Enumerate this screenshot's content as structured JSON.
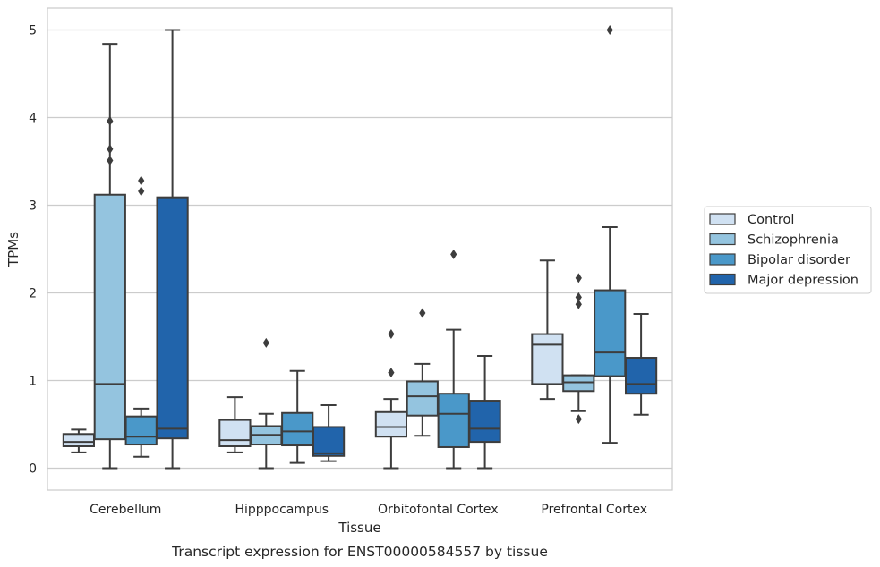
{
  "chart_data": {
    "type": "box",
    "title": "",
    "caption": "Transcript expression for ENST00000584557 by tissue",
    "xlabel": "Tissue",
    "ylabel": "TPMs",
    "ylim": [
      -0.25,
      5.25
    ],
    "yticks": [
      0,
      1,
      2,
      3,
      4,
      5
    ],
    "grid": "horizontal",
    "legend_position": "right",
    "categories": [
      "Cerebellum",
      "Hipppocampus",
      "Orbitofontal Cortex",
      "Prefrontal Cortex"
    ],
    "series": [
      {
        "name": "Control",
        "color": "#d0e1f2",
        "boxes": [
          {
            "whislo": 0.18,
            "q1": 0.25,
            "med": 0.3,
            "q3": 0.39,
            "whishi": 0.44,
            "fliers": []
          },
          {
            "whislo": 0.18,
            "q1": 0.25,
            "med": 0.32,
            "q3": 0.55,
            "whishi": 0.81,
            "fliers": []
          },
          {
            "whislo": 0.0,
            "q1": 0.36,
            "med": 0.47,
            "q3": 0.64,
            "whishi": 0.79,
            "fliers": [
              1.09,
              1.53
            ]
          },
          {
            "whislo": 0.79,
            "q1": 0.96,
            "med": 1.41,
            "q3": 1.53,
            "whishi": 2.37,
            "fliers": []
          }
        ]
      },
      {
        "name": "Schizophrenia",
        "color": "#94c4df",
        "boxes": [
          {
            "whislo": 0.0,
            "q1": 0.33,
            "med": 0.96,
            "q3": 3.12,
            "whishi": 4.84,
            "fliers": [
              3.51,
              3.64,
              3.96
            ]
          },
          {
            "whislo": 0.0,
            "q1": 0.27,
            "med": 0.38,
            "q3": 0.48,
            "whishi": 0.62,
            "fliers": [
              1.43
            ]
          },
          {
            "whislo": 0.37,
            "q1": 0.6,
            "med": 0.82,
            "q3": 0.99,
            "whishi": 1.19,
            "fliers": [
              1.77
            ]
          },
          {
            "whislo": 0.65,
            "q1": 0.88,
            "med": 0.98,
            "q3": 1.06,
            "whishi": 1.06,
            "fliers": [
              0.56,
              1.87,
              1.95,
              2.17
            ]
          }
        ]
      },
      {
        "name": "Bipolar disorder",
        "color": "#4a98c9",
        "boxes": [
          {
            "whislo": 0.13,
            "q1": 0.27,
            "med": 0.36,
            "q3": 0.59,
            "whishi": 0.68,
            "fliers": [
              3.16,
              3.28
            ]
          },
          {
            "whislo": 0.06,
            "q1": 0.26,
            "med": 0.42,
            "q3": 0.63,
            "whishi": 1.11,
            "fliers": []
          },
          {
            "whislo": 0.0,
            "q1": 0.24,
            "med": 0.62,
            "q3": 0.85,
            "whishi": 1.58,
            "fliers": [
              2.44
            ]
          },
          {
            "whislo": 0.29,
            "q1": 1.05,
            "med": 1.32,
            "q3": 2.03,
            "whishi": 2.75,
            "fliers": [
              5.0
            ]
          }
        ]
      },
      {
        "name": "Major depression",
        "color": "#2164ab",
        "boxes": [
          {
            "whislo": 0.0,
            "q1": 0.34,
            "med": 0.45,
            "q3": 3.09,
            "whishi": 5.0,
            "fliers": []
          },
          {
            "whislo": 0.08,
            "q1": 0.14,
            "med": 0.17,
            "q3": 0.47,
            "whishi": 0.72,
            "fliers": []
          },
          {
            "whislo": 0.0,
            "q1": 0.3,
            "med": 0.45,
            "q3": 0.77,
            "whishi": 1.28,
            "fliers": []
          },
          {
            "whislo": 0.61,
            "q1": 0.85,
            "med": 0.96,
            "q3": 1.26,
            "whishi": 1.76,
            "fliers": []
          }
        ]
      }
    ]
  }
}
